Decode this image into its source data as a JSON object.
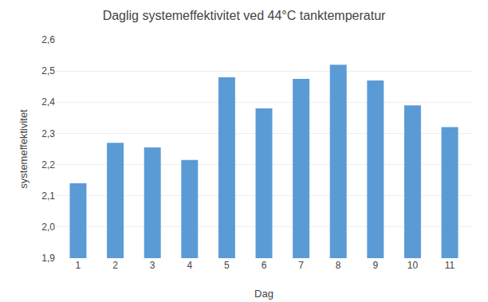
{
  "chart_data": {
    "type": "bar",
    "title": "Daglig systemeffektivitet ved 44°C tanktemperatur",
    "xlabel": "Dag",
    "ylabel": "systemeffektivitet",
    "categories": [
      1,
      2,
      3,
      4,
      5,
      6,
      7,
      8,
      9,
      10,
      11
    ],
    "values": [
      2.14,
      2.27,
      2.255,
      2.215,
      2.48,
      2.38,
      2.475,
      2.52,
      2.47,
      2.39,
      2.32
    ],
    "color": "#5b9bd5",
    "ylim": [
      1.9,
      2.6
    ],
    "yticks": [
      {
        "value": 1.9,
        "label": "1,9"
      },
      {
        "value": 2.0,
        "label": "2,0"
      },
      {
        "value": 2.1,
        "label": "2,1"
      },
      {
        "value": 2.2,
        "label": "2,2"
      },
      {
        "value": 2.3,
        "label": "2,3"
      },
      {
        "value": 2.4,
        "label": "2,4"
      },
      {
        "value": 2.5,
        "label": "2,5"
      },
      {
        "value": 2.6,
        "label": "2,6"
      }
    ],
    "grid": true
  }
}
